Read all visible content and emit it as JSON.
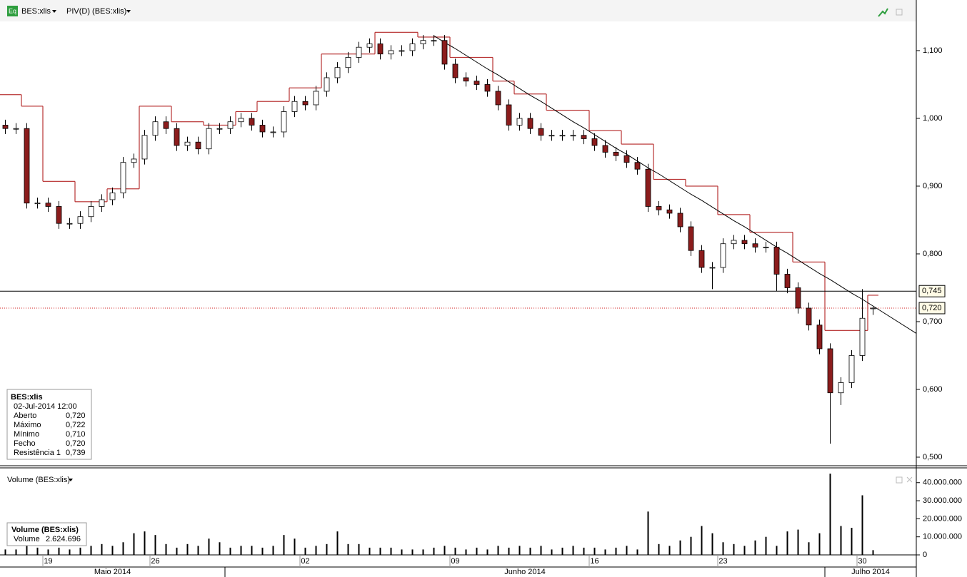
{
  "chart_data": [
    {
      "type": "candlestick",
      "title": "BES:xlis",
      "indicator": "PIV(D) (BES:xlis)",
      "header_icon": "Eq",
      "categories": [
        null,
        null,
        null,
        null,
        "19",
        null,
        null,
        null,
        null,
        null,
        null,
        null,
        null,
        null,
        "26",
        null,
        null,
        null,
        null,
        null,
        null,
        null,
        null,
        null,
        null,
        null,
        null,
        null,
        "02",
        null,
        null,
        null,
        null,
        null,
        null,
        null,
        null,
        null,
        null,
        null,
        null,
        null,
        "09",
        null,
        null,
        null,
        null,
        null,
        null,
        null,
        null,
        null,
        null,
        null,
        null,
        "16",
        null,
        null,
        null,
        null,
        null,
        null,
        null,
        null,
        null,
        null,
        null,
        "23",
        null,
        null,
        null,
        null,
        null,
        null,
        null,
        null,
        null,
        null,
        null,
        null,
        "30",
        null
      ],
      "months": [
        "Maio 2014",
        null,
        null,
        null,
        null,
        null,
        null,
        null,
        null,
        null,
        null,
        null,
        null,
        null,
        null,
        null,
        null,
        null,
        null,
        null,
        null,
        "Junho 2014",
        null,
        null,
        null,
        null,
        null,
        null,
        null,
        null,
        null,
        null,
        null,
        null,
        null,
        null,
        null,
        null,
        null,
        null,
        null,
        null,
        null,
        null,
        null,
        null,
        null,
        null,
        null,
        null,
        null,
        null,
        null,
        null,
        null,
        null,
        null,
        null,
        null,
        null,
        null,
        null,
        null,
        null,
        null,
        null,
        null,
        null,
        null,
        null,
        null,
        null,
        null,
        null,
        null,
        null,
        null,
        "Julho 2014",
        null,
        null,
        null,
        null
      ],
      "open": [
        0.99,
        0.985,
        0.985,
        0.875,
        0.875,
        0.87,
        0.845,
        0.845,
        0.855,
        0.87,
        0.88,
        0.89,
        0.935,
        0.94,
        0.975,
        0.995,
        0.985,
        0.96,
        0.965,
        0.955,
        0.985,
        0.985,
        0.995,
        1.0,
        0.99,
        0.98,
        0.98,
        1.01,
        1.025,
        1.02,
        1.04,
        1.06,
        1.075,
        1.09,
        1.105,
        1.11,
        1.095,
        1.1,
        1.1,
        1.11,
        1.115,
        1.115,
        1.08,
        1.06,
        1.055,
        1.05,
        1.04,
        1.02,
        0.99,
        1.0,
        0.985,
        0.975,
        0.975,
        0.975,
        0.975,
        0.97,
        0.96,
        0.95,
        0.945,
        0.935,
        0.925,
        0.87,
        0.865,
        0.86,
        0.84,
        0.805,
        0.78,
        0.78,
        0.815,
        0.82,
        0.815,
        0.81,
        0.81,
        0.77,
        0.75,
        0.72,
        0.695,
        0.66,
        0.595,
        0.61,
        0.65,
        0.72
      ],
      "high": [
        0.998,
        0.993,
        0.993,
        0.883,
        0.883,
        0.878,
        0.853,
        0.863,
        0.878,
        0.888,
        0.898,
        0.943,
        0.948,
        0.983,
        1.003,
        1.003,
        0.993,
        0.973,
        0.973,
        0.993,
        0.993,
        1.003,
        1.008,
        1.008,
        0.998,
        0.988,
        1.018,
        1.033,
        1.033,
        1.048,
        1.068,
        1.083,
        1.098,
        1.113,
        1.118,
        1.118,
        1.108,
        1.108,
        1.118,
        1.123,
        1.123,
        1.123,
        1.088,
        1.068,
        1.063,
        1.058,
        1.048,
        1.028,
        1.008,
        1.008,
        0.993,
        0.983,
        0.983,
        0.983,
        0.983,
        0.978,
        0.968,
        0.958,
        0.953,
        0.943,
        0.933,
        0.878,
        0.873,
        0.868,
        0.848,
        0.813,
        0.788,
        0.823,
        0.828,
        0.828,
        0.823,
        0.818,
        0.818,
        0.778,
        0.758,
        0.728,
        0.703,
        0.668,
        0.618,
        0.658,
        0.748,
        0.722
      ],
      "low": [
        0.977,
        0.977,
        0.867,
        0.867,
        0.862,
        0.837,
        0.837,
        0.837,
        0.847,
        0.862,
        0.872,
        0.882,
        0.927,
        0.932,
        0.967,
        0.977,
        0.952,
        0.952,
        0.947,
        0.947,
        0.977,
        0.977,
        0.987,
        0.982,
        0.972,
        0.972,
        0.972,
        1.002,
        1.012,
        1.012,
        1.032,
        1.052,
        1.067,
        1.082,
        1.097,
        1.087,
        1.087,
        1.092,
        1.092,
        1.102,
        1.107,
        1.072,
        1.052,
        1.047,
        1.042,
        1.032,
        1.012,
        0.982,
        0.982,
        0.977,
        0.967,
        0.967,
        0.967,
        0.967,
        0.962,
        0.952,
        0.942,
        0.937,
        0.927,
        0.917,
        0.862,
        0.857,
        0.852,
        0.832,
        0.797,
        0.772,
        0.748,
        0.772,
        0.807,
        0.807,
        0.802,
        0.802,
        0.745,
        0.742,
        0.712,
        0.687,
        0.652,
        0.52,
        0.577,
        0.602,
        0.642,
        0.71
      ],
      "close": [
        0.985,
        0.985,
        0.875,
        0.875,
        0.87,
        0.845,
        0.845,
        0.855,
        0.87,
        0.88,
        0.89,
        0.935,
        0.94,
        0.975,
        0.995,
        0.985,
        0.96,
        0.965,
        0.955,
        0.985,
        0.985,
        0.995,
        1.0,
        0.99,
        0.98,
        0.98,
        1.01,
        1.025,
        1.02,
        1.04,
        1.06,
        1.075,
        1.09,
        1.105,
        1.11,
        1.095,
        1.1,
        1.1,
        1.11,
        1.115,
        1.115,
        1.08,
        1.06,
        1.055,
        1.05,
        1.04,
        1.02,
        0.99,
        1.0,
        0.985,
        0.975,
        0.975,
        0.975,
        0.975,
        0.97,
        0.96,
        0.95,
        0.945,
        0.935,
        0.925,
        0.87,
        0.865,
        0.86,
        0.84,
        0.805,
        0.78,
        0.78,
        0.815,
        0.82,
        0.815,
        0.81,
        0.81,
        0.77,
        0.75,
        0.72,
        0.695,
        0.66,
        0.595,
        0.61,
        0.65,
        0.705,
        0.72
      ],
      "resistance": [
        1.035,
        1.035,
        1.018,
        1.018,
        0.907,
        0.907,
        0.907,
        0.877,
        0.877,
        0.877,
        0.896,
        0.896,
        0.896,
        1.018,
        1.018,
        1.018,
        0.995,
        0.995,
        0.995,
        0.99,
        0.99,
        0.99,
        1.01,
        1.01,
        1.025,
        1.025,
        1.025,
        1.045,
        1.045,
        1.045,
        1.095,
        1.095,
        1.095,
        1.095,
        1.095,
        1.127,
        1.127,
        1.127,
        1.127,
        1.12,
        1.12,
        1.12,
        1.09,
        1.09,
        1.09,
        1.09,
        1.055,
        1.055,
        1.036,
        1.036,
        1.036,
        1.012,
        1.012,
        1.012,
        1.012,
        0.982,
        0.982,
        0.982,
        0.962,
        0.962,
        0.962,
        0.91,
        0.91,
        0.91,
        0.9,
        0.9,
        0.9,
        0.858,
        0.858,
        0.858,
        0.832,
        0.832,
        0.832,
        0.832,
        0.788,
        0.788,
        0.788,
        0.687,
        0.687,
        0.687,
        0.687,
        0.739
      ],
      "trendline": [
        null,
        null,
        null,
        null,
        null,
        null,
        null,
        null,
        null,
        null,
        null,
        null,
        null,
        null,
        null,
        null,
        null,
        null,
        null,
        null,
        null,
        null,
        null,
        null,
        null,
        null,
        null,
        null,
        null,
        null,
        null,
        null,
        null,
        null,
        null,
        null,
        null,
        null,
        null,
        null,
        1.122,
        1.112,
        1.103,
        1.093,
        1.083,
        1.073,
        1.064,
        1.054,
        1.044,
        1.034,
        1.025,
        1.015,
        1.005,
        0.995,
        0.986,
        0.976,
        0.966,
        0.956,
        0.947,
        0.937,
        0.927,
        0.918,
        0.908,
        0.898,
        0.888,
        0.879,
        0.869,
        0.859,
        0.849,
        0.84,
        0.83,
        0.82,
        0.81,
        0.801,
        0.791,
        0.781,
        0.771,
        0.762,
        0.752,
        0.742,
        0.733,
        0.723
      ],
      "up_color": "#ffffff",
      "down_color": "#8b1c1c",
      "resistance_color": "#b83232",
      "trendline_color": "#000000",
      "hlines": [
        {
          "value": 0.745,
          "label": "0,745",
          "color": "#000000",
          "style": "solid"
        },
        {
          "value": 0.72,
          "label": "0,720",
          "color": "#d02020",
          "style": "dotted"
        }
      ],
      "ylim": [
        0.4884,
        1.1747
      ],
      "yticks": [
        {
          "value": 0.5,
          "label": "0,500"
        },
        {
          "value": 0.6,
          "label": "0,600"
        },
        {
          "value": 0.7,
          "label": "0,700"
        },
        {
          "value": 0.8,
          "label": "0,800"
        },
        {
          "value": 0.9,
          "label": "0,900"
        },
        {
          "value": 1.0,
          "label": "1,000"
        },
        {
          "value": 1.1,
          "label": "1,100"
        }
      ],
      "info": {
        "title": "BES:xlis",
        "date": "02-Jul-2014 12:00",
        "rows": [
          {
            "label": "Aberto",
            "value": "0,720"
          },
          {
            "label": "Máximo",
            "value": "0,722"
          },
          {
            "label": "Mínimo",
            "value": "0,710"
          },
          {
            "label": "Fecho",
            "value": "0,720"
          }
        ],
        "indicator_row": {
          "label": "Resistência 1",
          "value": "0,739"
        }
      }
    },
    {
      "type": "volume",
      "title": "Volume (BES:xlis)",
      "color": "#000000",
      "values": [
        3000000,
        3000000,
        5000000,
        4000000,
        3000000,
        4000000,
        3000000,
        4000000,
        5000000,
        6000000,
        5000000,
        7000000,
        12000000,
        13000000,
        11000000,
        6000000,
        4000000,
        6000000,
        5000000,
        9000000,
        7000000,
        4000000,
        5000000,
        5000000,
        4000000,
        5000000,
        11000000,
        9000000,
        4000000,
        5000000,
        6000000,
        13000000,
        6000000,
        6000000,
        4000000,
        4000000,
        4000000,
        3000000,
        3000000,
        3000000,
        4000000,
        5000000,
        4000000,
        3000000,
        4000000,
        3000000,
        5000000,
        4000000,
        5000000,
        4000000,
        5000000,
        3000000,
        4000000,
        5000000,
        4000000,
        4000000,
        3000000,
        4000000,
        5000000,
        3000000,
        24000000,
        6000000,
        5000000,
        8000000,
        10000000,
        16000000,
        12000000,
        7000000,
        6000000,
        5000000,
        8000000,
        10000000,
        5000000,
        13000000,
        14000000,
        7000000,
        12000000,
        45000000,
        16000000,
        15000000,
        33000000,
        2624696
      ],
      "ylim": [
        0,
        47800000
      ],
      "yticks": [
        0,
        {
          "value": 10000000,
          "label": "10.000.000"
        },
        {
          "value": 20000000,
          "label": "20.000.000"
        },
        {
          "value": 30000000,
          "label": "30.000.000"
        },
        {
          "value": 40000000,
          "label": "40.000.000"
        }
      ],
      "info": {
        "title": "Volume (BES:xlis)",
        "label": "Volume",
        "value": "2.624.696"
      }
    }
  ]
}
